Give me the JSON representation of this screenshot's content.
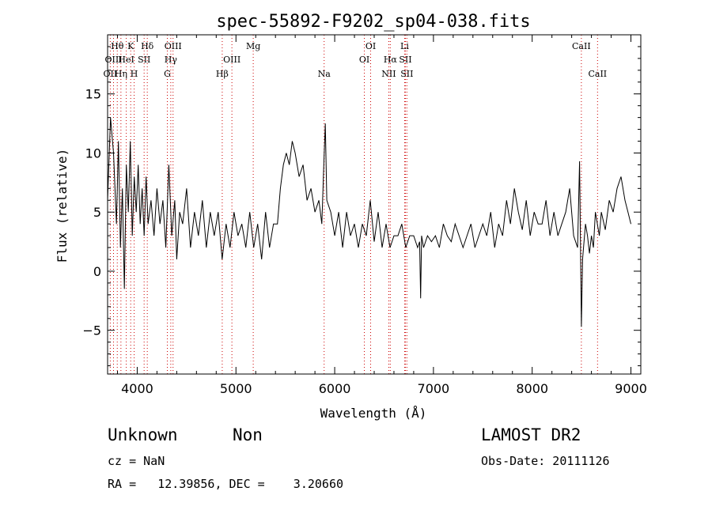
{
  "chart_data": {
    "type": "line",
    "title": "spec-55892-F9202_sp04-038.fits",
    "xlabel": "Wavelength (Å)",
    "ylabel": "Flux (relative)",
    "xlim": [
      3700,
      9100
    ],
    "ylim": [
      -8.7,
      20.0
    ],
    "xticks": [
      4000,
      5000,
      6000,
      7000,
      8000,
      9000
    ],
    "yticks": [
      -5,
      0,
      5,
      10,
      15
    ],
    "grid": false,
    "series": [
      {
        "x": [
          3700,
          3730,
          3760,
          3790,
          3810,
          3830,
          3850,
          3870,
          3890,
          3910,
          3930,
          3950,
          3970,
          3990,
          4010,
          4030,
          4050,
          4070,
          4090,
          4110,
          4140,
          4170,
          4200,
          4230,
          4260,
          4290,
          4320,
          4350,
          4380,
          4400,
          4430,
          4460,
          4500,
          4540,
          4580,
          4620,
          4660,
          4700,
          4740,
          4780,
          4820,
          4860,
          4900,
          4940,
          4980,
          5020,
          5060,
          5100,
          5140,
          5180,
          5220,
          5260,
          5300,
          5340,
          5380,
          5420,
          5450,
          5480,
          5510,
          5540,
          5570,
          5600,
          5640,
          5680,
          5720,
          5760,
          5800,
          5840,
          5870,
          5890,
          5905,
          5920,
          5960,
          6000,
          6040,
          6080,
          6120,
          6160,
          6200,
          6240,
          6280,
          6320,
          6360,
          6400,
          6440,
          6480,
          6520,
          6560,
          6600,
          6640,
          6680,
          6720,
          6760,
          6800,
          6840,
          6860,
          6870,
          6880,
          6900,
          6940,
          6980,
          7020,
          7060,
          7100,
          7140,
          7180,
          7220,
          7260,
          7300,
          7340,
          7380,
          7420,
          7460,
          7500,
          7540,
          7580,
          7620,
          7660,
          7700,
          7740,
          7780,
          7820,
          7860,
          7900,
          7940,
          7980,
          8020,
          8060,
          8100,
          8140,
          8180,
          8220,
          8260,
          8300,
          8340,
          8380,
          8420,
          8460,
          8480,
          8498,
          8510,
          8520,
          8540,
          8560,
          8580,
          8600,
          8620,
          8640,
          8660,
          8680,
          8700,
          8740,
          8780,
          8820,
          8860,
          8900,
          8940,
          8970,
          9000
        ],
        "y": [
          6,
          13,
          10,
          4,
          11,
          2,
          7,
          -1.5,
          9,
          5,
          11,
          3,
          8,
          5,
          9,
          4,
          7,
          3,
          8,
          4,
          6,
          3,
          7,
          4,
          6,
          2,
          9,
          3,
          6,
          1,
          5,
          4,
          7,
          2,
          5,
          3,
          6,
          2,
          5,
          3,
          5,
          1,
          4,
          2,
          5,
          3,
          4,
          2,
          5,
          2,
          4,
          1,
          5,
          2,
          4,
          4,
          7,
          9,
          10,
          9,
          11,
          10,
          8,
          9,
          6,
          7,
          5,
          6,
          4,
          9,
          12.5,
          6,
          5,
          3,
          5,
          2,
          5,
          3,
          4,
          2,
          4,
          3,
          6,
          2.5,
          5,
          2,
          4,
          2,
          3,
          3,
          4,
          2,
          3,
          3,
          2,
          2.5,
          -2.3,
          3,
          2,
          3,
          2.5,
          3,
          2,
          4,
          3,
          2.5,
          4,
          3,
          2,
          3,
          4,
          2,
          3,
          4,
          3,
          5,
          2,
          4,
          3,
          6,
          4,
          7,
          5,
          3.5,
          6,
          3,
          5,
          4,
          4,
          6,
          3,
          5,
          3,
          4,
          5,
          7,
          3,
          2,
          9.3,
          -4.7,
          1,
          2,
          4,
          3,
          1.5,
          3,
          2,
          5,
          4,
          3,
          5,
          3.5,
          6,
          5,
          7,
          8,
          6,
          5,
          4
        ]
      }
    ],
    "lines": [
      {
        "label": "OII",
        "x": 3727,
        "row": 2
      },
      {
        "label": "Hθ",
        "x": 3798,
        "row": 0
      },
      {
        "label": "OIII",
        "x": 3760,
        "row": 1
      },
      {
        "label": "HeI",
        "x": 3889,
        "row": 1
      },
      {
        "label": "Hη",
        "x": 3835,
        "row": 2
      },
      {
        "label": "K",
        "x": 3934,
        "row": 0
      },
      {
        "label": "SII",
        "x": 4070,
        "row": 1
      },
      {
        "label": "H",
        "x": 3969,
        "row": 2
      },
      {
        "label": "Hδ",
        "x": 4102,
        "row": 0
      },
      {
        "label": "OIII",
        "x": 4363,
        "row": 0
      },
      {
        "label": "Hγ",
        "x": 4340,
        "row": 1
      },
      {
        "label": "G",
        "x": 4305,
        "row": 2
      },
      {
        "label": "OIII",
        "x": 4959,
        "row": 1
      },
      {
        "label": "Hβ",
        "x": 4861,
        "row": 2
      },
      {
        "label": "Mg",
        "x": 5175,
        "row": 0
      },
      {
        "label": "Na",
        "x": 5893,
        "row": 2
      },
      {
        "label": "OI",
        "x": 6364,
        "row": 0
      },
      {
        "label": "OI",
        "x": 6300,
        "row": 1
      },
      {
        "label": "Hα",
        "x": 6563,
        "row": 1
      },
      {
        "label": "NII",
        "x": 6548,
        "row": 2
      },
      {
        "label": "Li",
        "x": 6708,
        "row": 0
      },
      {
        "label": "SII",
        "x": 6716,
        "row": 1
      },
      {
        "label": "SII",
        "x": 6731,
        "row": 2
      },
      {
        "label": "CaII",
        "x": 8498,
        "row": 0
      },
      {
        "label": "CaII",
        "x": 8662,
        "row": 2
      }
    ]
  },
  "footer": {
    "class": "Unknown",
    "subclass": "Non",
    "survey": "LAMOST DR2",
    "cz": "cz = NaN",
    "obsdate": "Obs-Date: 20111126",
    "coords": "RA =   12.39856, DEC =    3.20660"
  },
  "colors": {
    "line_marker": "#cc0000",
    "spectrum": "#000000",
    "axes": "#000000"
  }
}
